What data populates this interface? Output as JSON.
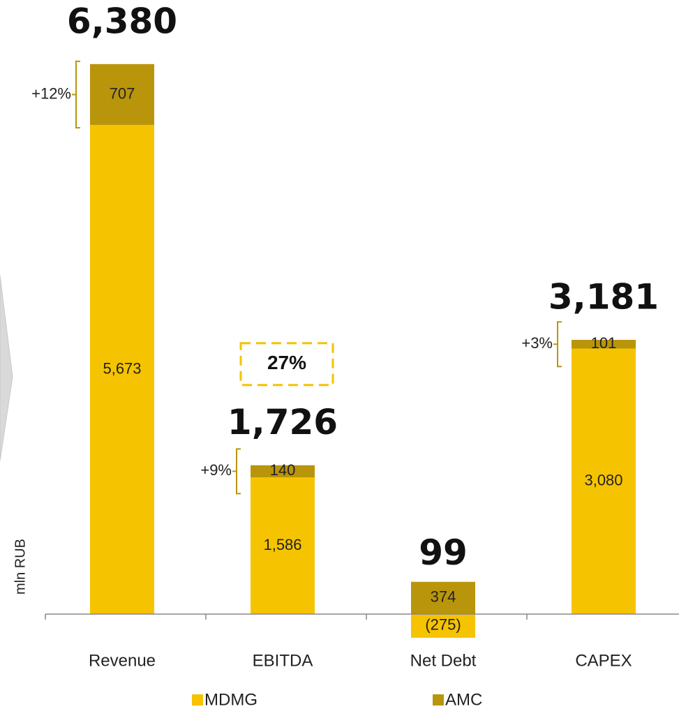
{
  "chart_data": {
    "type": "stacked_bar",
    "y_label": "mln RUB",
    "categories": [
      "Revenue",
      "EBITDA",
      "Net Debt",
      "CAPEX"
    ],
    "series": [
      {
        "name": "MDMG",
        "color": "#f6c300",
        "values": [
          5673,
          1586,
          -275,
          3080
        ],
        "value_labels": [
          "5,673",
          "1,586",
          "(275)",
          "3,080"
        ]
      },
      {
        "name": "AMC",
        "color": "#b9950b",
        "values": [
          707,
          140,
          374,
          101
        ],
        "value_labels": [
          "707",
          "140",
          "374",
          "101"
        ]
      }
    ],
    "total_labels": [
      "6,380",
      "1,726",
      "99",
      "3,181"
    ],
    "share_labels": [
      "+12%",
      "+9%",
      null,
      "+3%"
    ],
    "margin_label": "27%",
    "ylim": [
      -300,
      6500
    ],
    "legend": "bottom"
  }
}
